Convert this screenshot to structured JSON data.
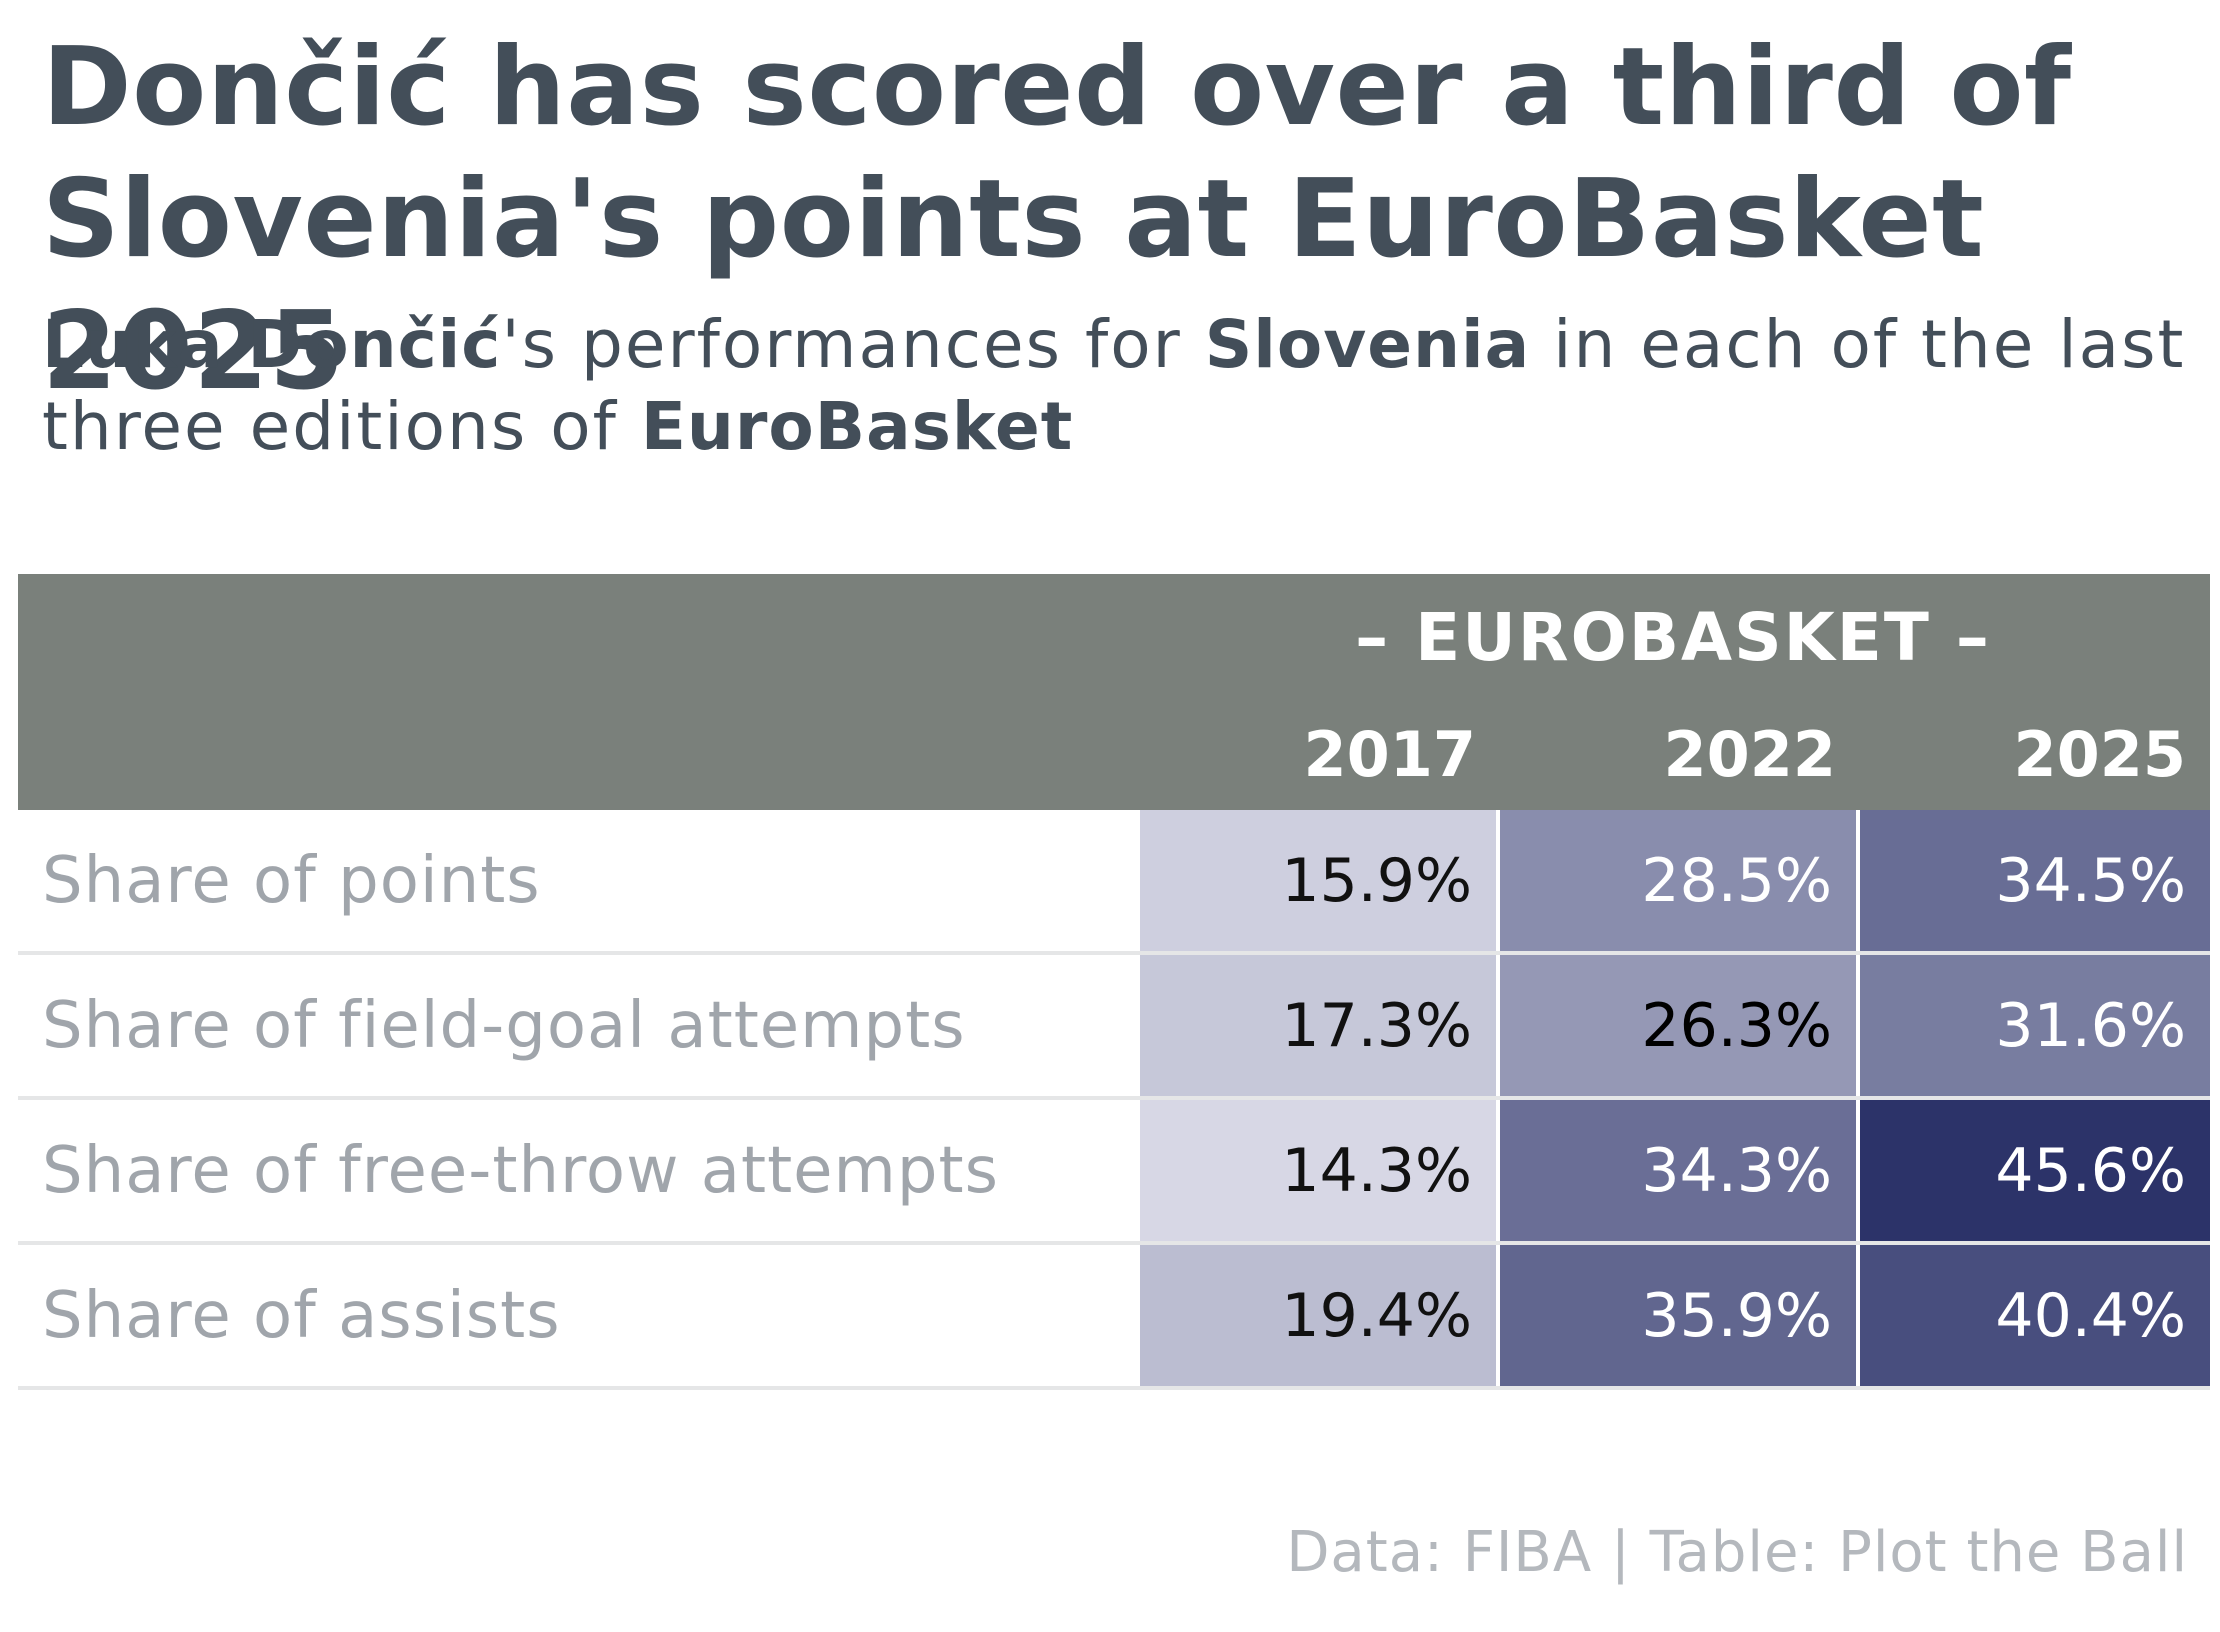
{
  "title": "Dončić has scored over a third of Slovenia's points at EuroBasket 2025",
  "subtitle": {
    "parts": [
      {
        "text": "Luka Dončić",
        "bold": true
      },
      {
        "text": "'s performances for ",
        "bold": false
      },
      {
        "text": "Slovenia",
        "bold": true
      },
      {
        "text": " in each of the last three editions of ",
        "bold": false
      },
      {
        "text": "EuroBasket",
        "bold": true
      }
    ]
  },
  "table_header": {
    "spanner": "– EUROBASKET –",
    "years": [
      "2017",
      "2022",
      "2025"
    ]
  },
  "colors": {
    "header_bg": "#7a807b",
    "scale_low": "#eeeef6",
    "scale_high": "#2c3369"
  },
  "chart_data": {
    "type": "table",
    "title": "Dončić has scored over a third of Slovenia's points at EuroBasket 2025",
    "columns": [
      "2017",
      "2022",
      "2025"
    ],
    "rows": [
      {
        "label": "Share of points",
        "values": [
          15.9,
          28.5,
          34.5
        ],
        "display": [
          "15.9%",
          "28.5%",
          "34.5%"
        ]
      },
      {
        "label": "Share of field-goal attempts",
        "values": [
          17.3,
          26.3,
          31.6
        ],
        "display": [
          "17.3%",
          "26.3%",
          "31.6%"
        ]
      },
      {
        "label": "Share of free-throw attempts",
        "values": [
          14.3,
          34.3,
          45.6
        ],
        "display": [
          "14.3%",
          "34.3%",
          "45.6%"
        ]
      },
      {
        "label": "Share of assists",
        "values": [
          19.4,
          35.9,
          40.4
        ],
        "display": [
          "19.4%",
          "35.9%",
          "40.4%"
        ]
      }
    ]
  },
  "source": "Data: FIBA | Table: Plot the Ball"
}
